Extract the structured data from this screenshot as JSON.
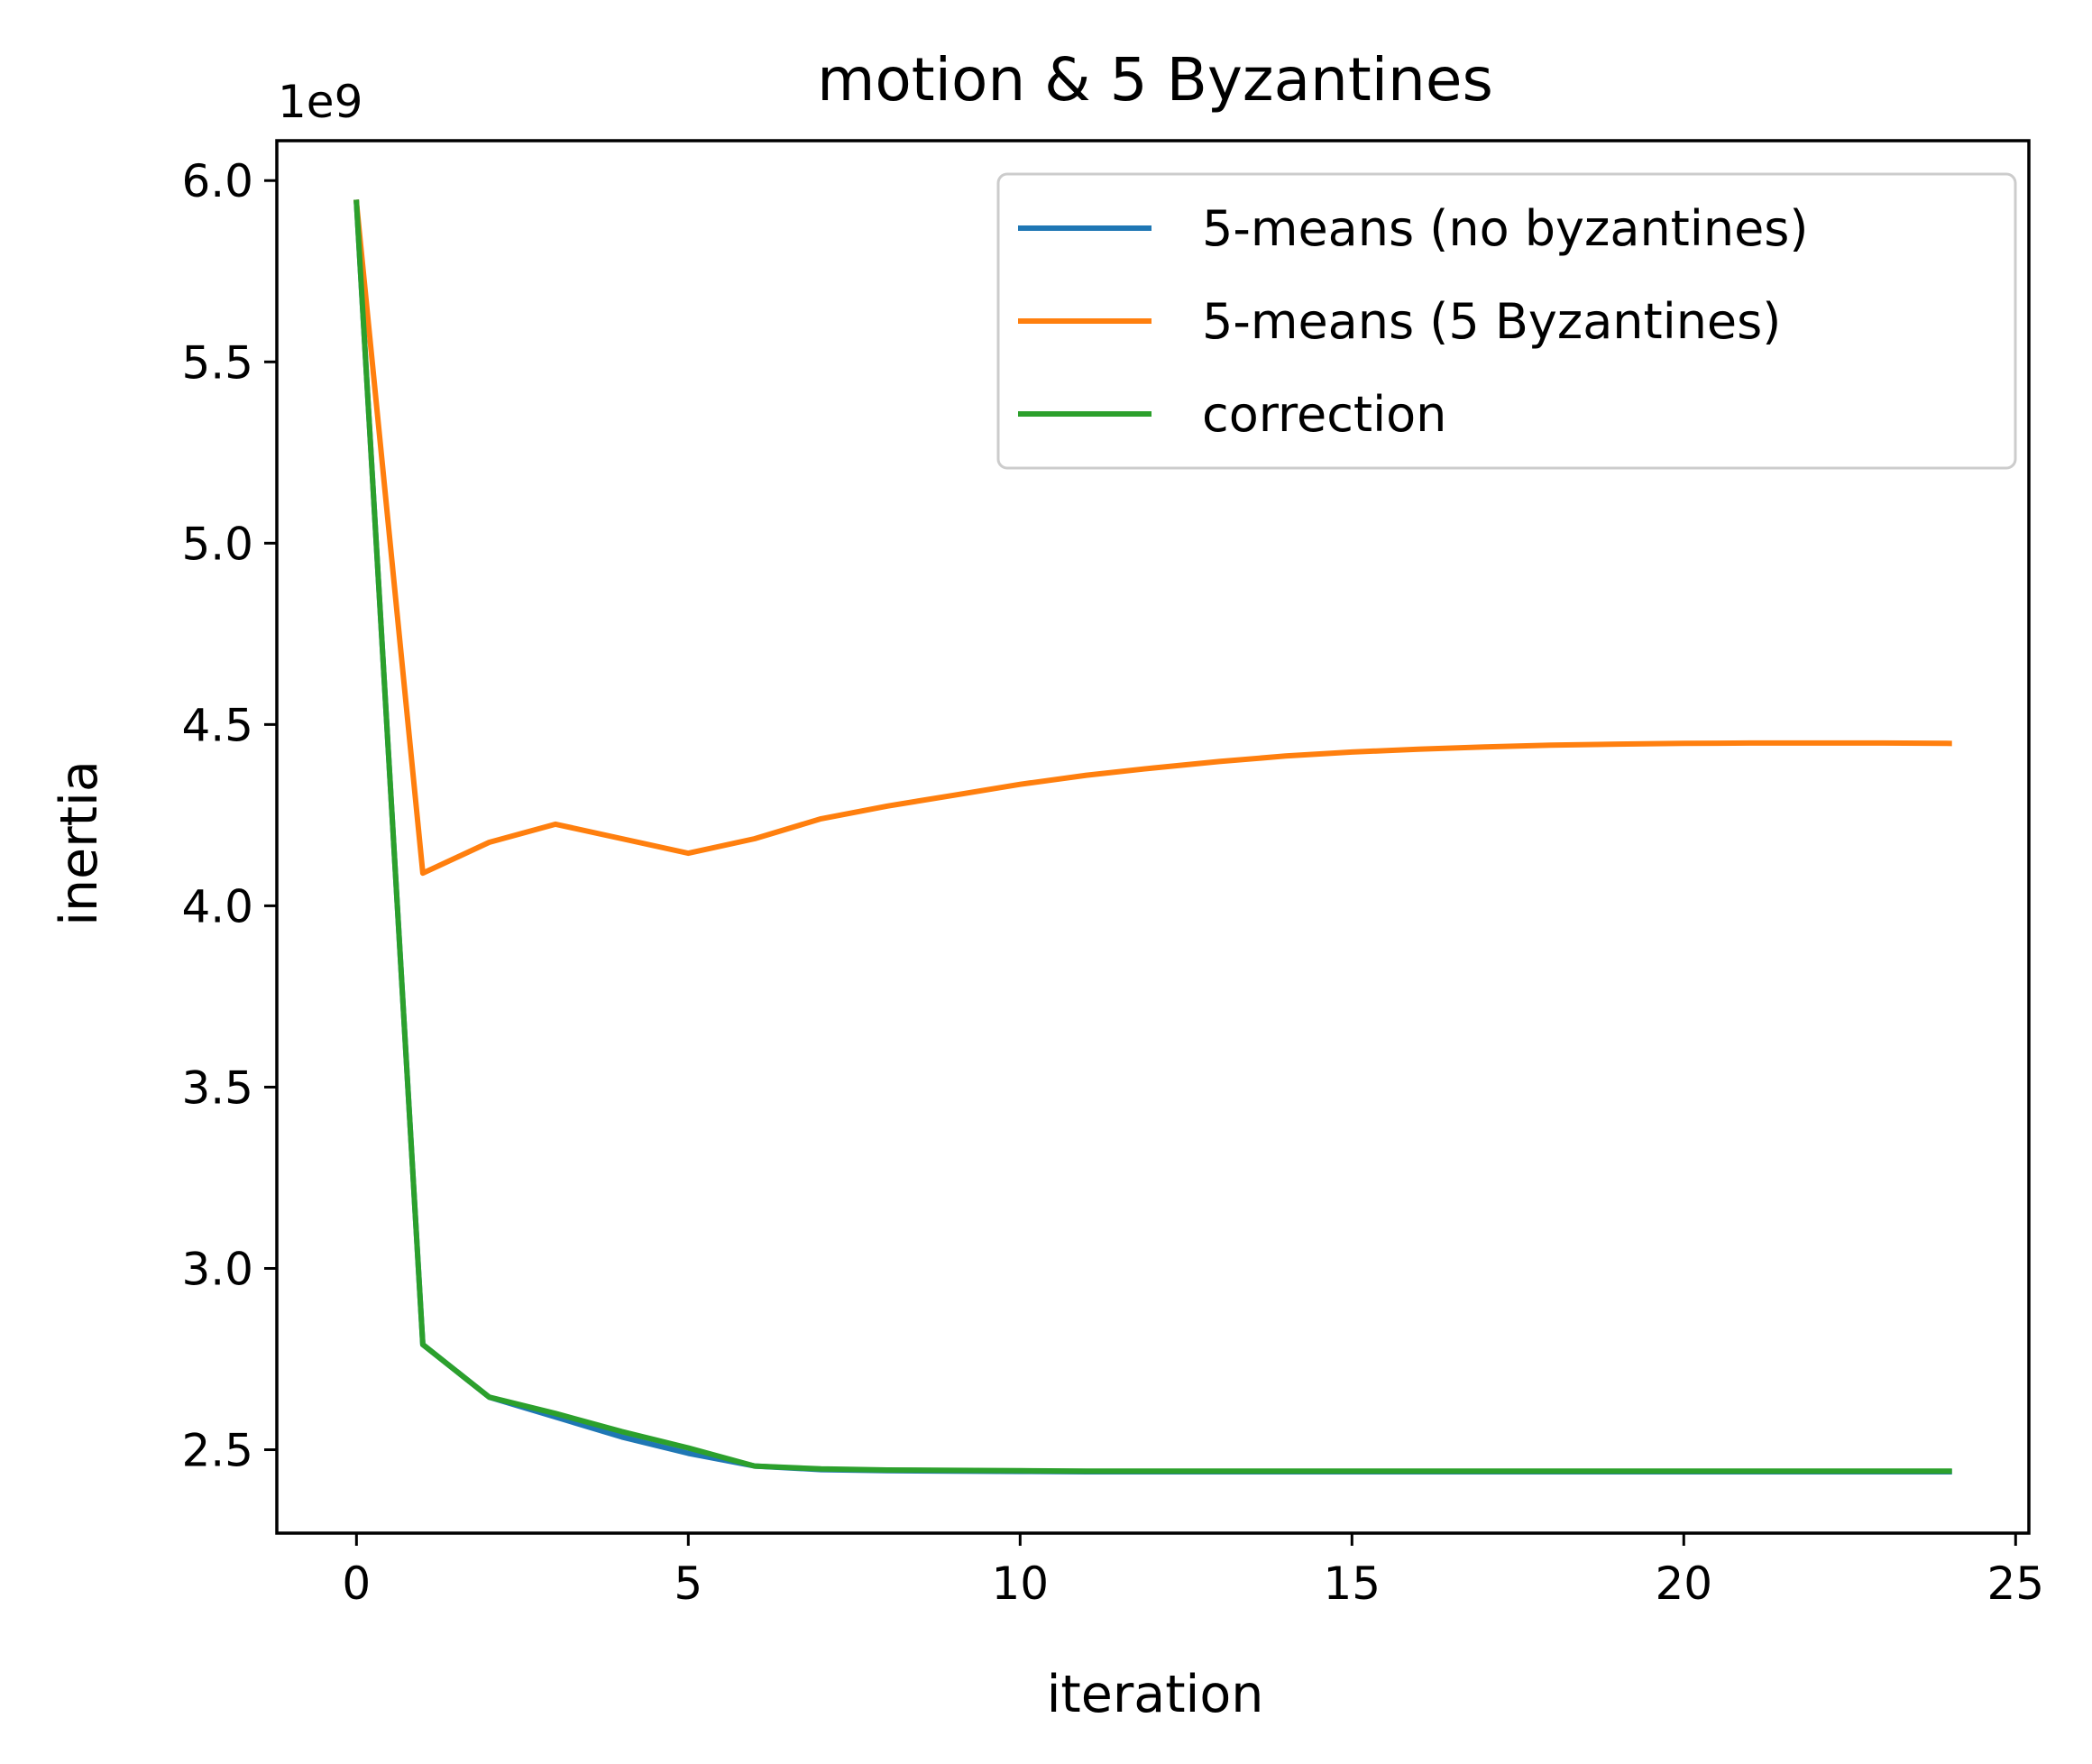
{
  "chart_data": {
    "type": "line",
    "title": "motion & 5 Byzantines",
    "xlabel": "iteration",
    "ylabel": "inertia",
    "y_offset_label": "1e9",
    "xlim": [
      -1.2,
      25.2
    ],
    "ylim": [
      2.27,
      6.11
    ],
    "xticks": [
      0,
      5,
      10,
      15,
      20,
      25
    ],
    "xtick_labels": [
      "0",
      "5",
      "10",
      "15",
      "20",
      "25"
    ],
    "yticks": [
      2.5,
      3.0,
      3.5,
      4.0,
      4.5,
      5.0,
      5.5,
      6.0
    ],
    "ytick_labels": [
      "2.5",
      "3.0",
      "3.5",
      "4.0",
      "4.5",
      "5.0",
      "5.5",
      "6.0"
    ],
    "grid": false,
    "legend_position": "upper right",
    "x": [
      0,
      1,
      2,
      3,
      4,
      5,
      6,
      7,
      8,
      9,
      10,
      11,
      12,
      13,
      14,
      15,
      16,
      17,
      18,
      19,
      20,
      21,
      22,
      23,
      24
    ],
    "series": [
      {
        "name": "5-means (no byzantines)",
        "color": "#1f77b4",
        "values": [
          5.94,
          2.79,
          2.645,
          2.59,
          2.535,
          2.49,
          2.455,
          2.445,
          2.442,
          2.441,
          2.44,
          2.439,
          2.439,
          2.439,
          2.439,
          2.439,
          2.439,
          2.439,
          2.439,
          2.439,
          2.439,
          2.439,
          2.439,
          2.439,
          2.439
        ]
      },
      {
        "name": "5-means (5 Byzantines)",
        "color": "#ff7f0e",
        "values": [
          5.94,
          4.09,
          4.175,
          4.225,
          4.185,
          4.145,
          4.185,
          4.24,
          4.275,
          4.305,
          4.335,
          4.36,
          4.38,
          4.398,
          4.413,
          4.424,
          4.432,
          4.438,
          4.443,
          4.446,
          4.448,
          4.449,
          4.449,
          4.449,
          4.448
        ]
      },
      {
        "name": "correction",
        "color": "#2ca02c",
        "values": [
          5.94,
          2.79,
          2.645,
          2.6,
          2.55,
          2.505,
          2.455,
          2.447,
          2.444,
          2.443,
          2.442,
          2.441,
          2.441,
          2.441,
          2.441,
          2.441,
          2.441,
          2.441,
          2.441,
          2.441,
          2.441,
          2.441,
          2.441,
          2.441,
          2.441
        ]
      }
    ]
  }
}
